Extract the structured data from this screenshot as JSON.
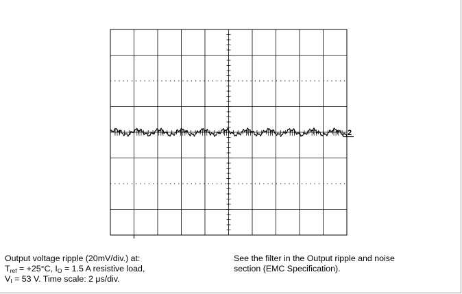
{
  "chart_data": {
    "type": "line",
    "title": "",
    "xlabel": "",
    "ylabel": "",
    "x_divisions": 10,
    "y_divisions": 8,
    "vertical_scale_per_div_mV": 20,
    "time_scale_per_div_us": 2,
    "xlim_us": [
      0,
      20
    ],
    "ylim_mV": [
      -80,
      80
    ],
    "grid": true,
    "series": [
      {
        "name": "",
        "channel_label": "2",
        "description_values_mV": {
          "baseline": 0,
          "ripple_peak_to_peak_approx": 4,
          "ripple_period_us_approx": 1.85
        },
        "x_us": [
          0,
          0.5,
          1,
          1.5,
          2,
          2.5,
          3,
          3.5,
          4,
          4.5,
          5,
          5.5,
          6,
          6.5,
          7,
          7.5,
          8,
          8.5,
          9,
          9.5,
          10,
          10.5,
          11,
          11.5,
          12,
          12.5,
          13,
          13.5,
          14,
          14.5,
          15,
          15.5,
          16,
          16.5,
          17,
          17.5,
          18,
          18.5,
          19,
          19.5,
          20
        ],
        "y_mV": [
          1,
          -1.5,
          1,
          -1,
          0.5,
          -1.5,
          1,
          -1,
          1.5,
          -1.5,
          1,
          -1,
          0.5,
          -1.5,
          1,
          -1,
          1.5,
          -1.5,
          1,
          -1,
          0.5,
          -1.5,
          1,
          -1,
          1.5,
          -1.5,
          1,
          -1,
          0.5,
          -1.5,
          1,
          -1,
          1.5,
          -1.5,
          1,
          -1,
          0.5,
          -1.5,
          1,
          -1,
          1
        ]
      }
    ]
  },
  "colors": {
    "grid": "#000000",
    "trace": "#000000",
    "frame": "#9a9a9a"
  },
  "caption_left": {
    "line1": "Output voltage ripple (20mV/div.) at:",
    "t": "T",
    "t_sub": "ref",
    "t_rest": " = +25°C, I",
    "i_sub": "O",
    "i_rest": " = 1.5 A resistive load,",
    "v": "V",
    "v_sub": "I",
    "v_rest": " = 53 V. Time scale: 2 μs/div."
  },
  "caption_right": {
    "line1": "See the filter in the Output ripple and noise",
    "line2": "section (EMC Specification)."
  }
}
